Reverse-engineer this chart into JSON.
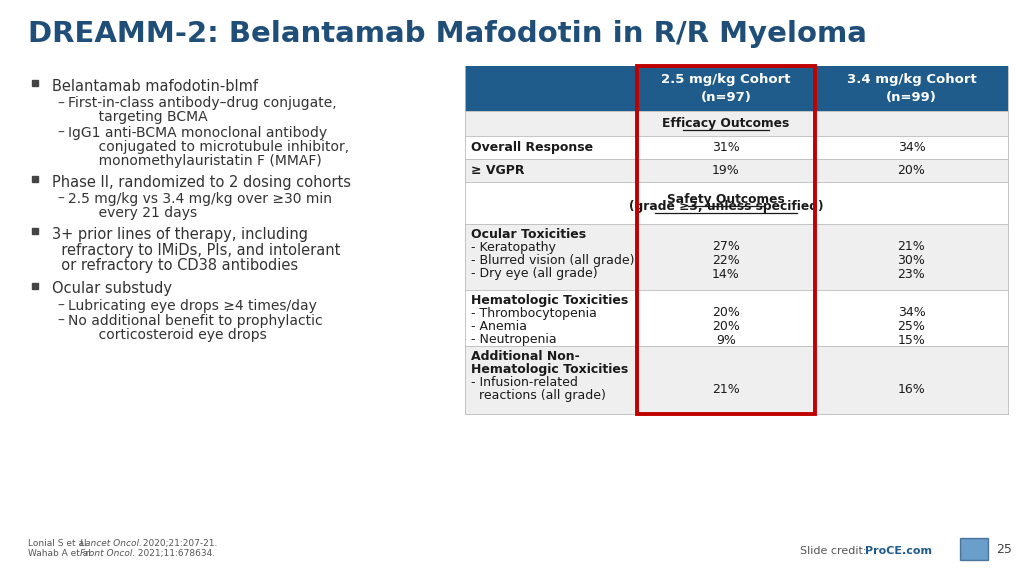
{
  "title": "DREAMM-2: Belantamab Mafodotin in R/R Myeloma",
  "title_color": "#1F4E79",
  "title_fontsize": 21,
  "bg_color": "#FFFFFF",
  "bullet_points": [
    {
      "main": "Belantamab mafodotin-blmf",
      "subs": [
        "First-in-class antibody–drug conjugate,\n       targeting BCMA",
        "IgG1 anti-BCMA monoclonal antibody\n       conjugated to microtubule inhibitor,\n       monomethylauristatin F (MMAF)"
      ]
    },
    {
      "main": "Phase II, randomized to 2 dosing cohorts",
      "subs": [
        "2.5 mg/kg vs 3.4 mg/kg over ≥30 min\n       every 21 days"
      ]
    },
    {
      "main": "3+ prior lines of therapy, including\n  refractory to IMiDs, PIs, and intolerant\n  or refractory to CD38 antibodies",
      "subs": []
    },
    {
      "main": "Ocular substudy",
      "subs": [
        "Lubricating eye drops ≥4 times/day",
        "No additional benefit to prophylactic\n       corticosteroid eye drops"
      ]
    }
  ],
  "table_header_bg": "#1F5C8B",
  "table_header_color": "#FFFFFF",
  "table_row_bg_odd": "#EFEFEF",
  "table_row_bg_even": "#FFFFFF",
  "table_border_color": "#BBBBBB",
  "red_box_color": "#C00000",
  "col2_header": "2.5 mg/kg Cohort\n(n=97)",
  "col3_header": "3.4 mg/kg Cohort\n(n=99)",
  "rows": [
    {
      "label": "",
      "col2": "Efficacy Outcomes",
      "col3": "",
      "type": "section_header",
      "row_bg": "#EFEFEF"
    },
    {
      "label": "Overall Response",
      "col2": "31%",
      "col3": "34%",
      "type": "data",
      "bold_label": true,
      "row_bg": "#FFFFFF"
    },
    {
      "label": "≥ VGPR",
      "col2": "19%",
      "col3": "20%",
      "type": "data",
      "bold_label": true,
      "row_bg": "#EFEFEF"
    },
    {
      "label": "",
      "col2": "Safety Outcomes\n(grade ≥3, unless specified)",
      "col3": "",
      "type": "section_header",
      "row_bg": "#FFFFFF"
    },
    {
      "label": "Ocular Toxicities",
      "label_subs": [
        "- Keratopathy",
        "- Blurred vision (all grade)",
        "- Dry eye (all grade)"
      ],
      "col2_subs": [
        "27%",
        "22%",
        "14%"
      ],
      "col3_subs": [
        "21%",
        "30%",
        "23%"
      ],
      "type": "group",
      "row_bg": "#EFEFEF"
    },
    {
      "label": "Hematologic Toxicities",
      "label_subs": [
        "- Thrombocytopenia",
        "- Anemia",
        "- Neutropenia"
      ],
      "col2_subs": [
        "20%",
        "20%",
        "9%"
      ],
      "col3_subs": [
        "34%",
        "25%",
        "15%"
      ],
      "type": "group",
      "row_bg": "#FFFFFF"
    },
    {
      "label": "Additional Non-\nHematologic Toxicities",
      "label_subs": [
        "- Infusion-related\n  reactions (all grade)"
      ],
      "col2_subs": [
        "21%"
      ],
      "col3_subs": [
        "16%"
      ],
      "type": "group",
      "row_bg": "#EFEFEF"
    }
  ],
  "footer_left1": "Lonial S et al. ",
  "footer_left1_italic": "Lancet Oncol.",
  "footer_left1_rest": " 2020;21:207-21.",
  "footer_left2": "Wahab A et al. ",
  "footer_left2_italic": "Front Oncol.",
  "footer_left2_rest": " 2021;11:678634.",
  "footer_slide_credit": "Slide credit: ",
  "footer_proce": "ProCE.com",
  "footer_page": "25"
}
